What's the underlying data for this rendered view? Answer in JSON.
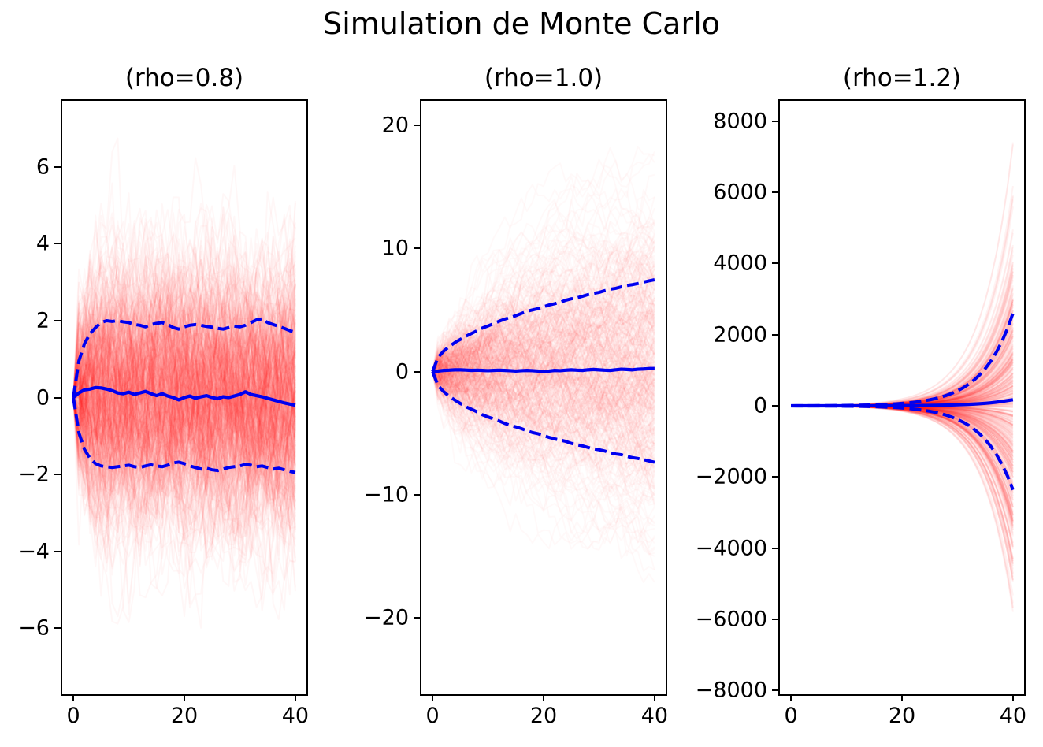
{
  "figure": {
    "background": "#ffffff",
    "text_color": "#000000"
  },
  "chart_data": {
    "type": "line",
    "title": "Simulation de Monte Carlo",
    "grid": false,
    "legend": null,
    "line_color": "#0000f0",
    "path_color": "#ff0000",
    "panels": [
      {
        "title": "(rho=0.8)",
        "rho": 0.8,
        "n_steps": 40,
        "xlim": [
          -2,
          42
        ],
        "ylim": [
          -7.72,
          7.72
        ],
        "xticks": [
          {
            "v": 0,
            "label": "0"
          },
          {
            "v": 20,
            "label": "20"
          },
          {
            "v": 40,
            "label": "40"
          }
        ],
        "yticks": [
          {
            "v": 6,
            "label": "6"
          },
          {
            "v": 4,
            "label": "4"
          },
          {
            "v": 2,
            "label": "2"
          },
          {
            "v": 0,
            "label": "0"
          },
          {
            "v": -2,
            "label": "−2"
          },
          {
            "v": -4,
            "label": "−4"
          },
          {
            "v": -6,
            "label": "−6"
          }
        ],
        "sample_paths": {
          "count": 500,
          "sigma": 1.0,
          "alpha": 0.03,
          "line_width": 2,
          "seed": 42
        },
        "mean": [
          0,
          0.12,
          0.2,
          0.22,
          0.26,
          0.25,
          0.22,
          0.18,
          0.12,
          0.1,
          0.14,
          0.08,
          0.12,
          0.16,
          0.1,
          0.05,
          0.1,
          0.04,
          0,
          -0.06,
          0,
          0.04,
          -0.02,
          0.02,
          0.05,
          0,
          -0.03,
          0.02,
          0,
          0.04,
          0.08,
          0.15,
          0.08,
          0.05,
          0.02,
          -0.02,
          -0.06,
          -0.1,
          -0.14,
          -0.17,
          -0.2
        ],
        "upper": [
          0,
          0.95,
          1.4,
          1.66,
          1.82,
          1.95,
          2.0,
          1.98,
          2.0,
          1.97,
          1.95,
          1.9,
          1.88,
          1.84,
          1.9,
          1.93,
          1.95,
          1.9,
          1.82,
          1.78,
          1.84,
          1.88,
          1.9,
          1.88,
          1.85,
          1.83,
          1.8,
          1.78,
          1.82,
          1.86,
          1.84,
          1.88,
          1.95,
          2.02,
          2.05,
          1.95,
          1.9,
          1.85,
          1.8,
          1.74,
          1.7
        ],
        "lower": [
          0,
          -0.92,
          -1.35,
          -1.58,
          -1.72,
          -1.78,
          -1.8,
          -1.82,
          -1.8,
          -1.78,
          -1.76,
          -1.8,
          -1.82,
          -1.78,
          -1.75,
          -1.78,
          -1.8,
          -1.76,
          -1.7,
          -1.68,
          -1.72,
          -1.78,
          -1.82,
          -1.86,
          -1.84,
          -1.88,
          -1.9,
          -1.86,
          -1.82,
          -1.8,
          -1.78,
          -1.74,
          -1.76,
          -1.8,
          -1.78,
          -1.82,
          -1.86,
          -1.84,
          -1.88,
          -1.92,
          -1.95
        ]
      },
      {
        "title": "(rho=1.0)",
        "rho": 1.0,
        "n_steps": 40,
        "xlim": [
          -2,
          42
        ],
        "ylim": [
          -26.2,
          22.0
        ],
        "xticks": [
          {
            "v": 0,
            "label": "0"
          },
          {
            "v": 20,
            "label": "20"
          },
          {
            "v": 40,
            "label": "40"
          }
        ],
        "yticks": [
          {
            "v": 20,
            "label": "20"
          },
          {
            "v": 10,
            "label": "10"
          },
          {
            "v": 0,
            "label": "0"
          },
          {
            "v": -10,
            "label": "−10"
          },
          {
            "v": -20,
            "label": "−20"
          }
        ],
        "sample_paths": {
          "count": 500,
          "sigma": 1.0,
          "alpha": 0.025,
          "line_width": 2,
          "seed": 1337
        },
        "mean": [
          0,
          0.05,
          0.1,
          0.12,
          0.15,
          0.15,
          0.13,
          0.1,
          0.12,
          0.1,
          0.08,
          0.1,
          0.12,
          0.1,
          0.08,
          0.05,
          0.08,
          0.1,
          0.08,
          0.05,
          0.02,
          0.05,
          0.1,
          0.08,
          0.12,
          0.15,
          0.12,
          0.1,
          0.15,
          0.18,
          0.15,
          0.12,
          0.1,
          0.15,
          0.2,
          0.18,
          0.15,
          0.2,
          0.22,
          0.25,
          0.25
        ],
        "upper": [
          0,
          1.18,
          1.67,
          2.04,
          2.36,
          2.62,
          2.88,
          3.1,
          3.33,
          3.55,
          3.72,
          3.9,
          4.1,
          4.27,
          4.4,
          4.55,
          4.73,
          4.9,
          5.02,
          5.12,
          5.27,
          5.42,
          5.52,
          5.64,
          5.8,
          5.92,
          6.0,
          6.12,
          6.26,
          6.36,
          6.44,
          6.58,
          6.7,
          6.77,
          6.89,
          7.0,
          7.07,
          7.16,
          7.28,
          7.38,
          7.47
        ],
        "lower": [
          0,
          -1.14,
          -1.62,
          -2.0,
          -2.3,
          -2.58,
          -2.85,
          -3.05,
          -3.26,
          -3.5,
          -3.68,
          -3.84,
          -4.0,
          -4.2,
          -4.36,
          -4.48,
          -4.62,
          -4.8,
          -4.94,
          -5.04,
          -5.18,
          -5.34,
          -5.46,
          -5.55,
          -5.66,
          -5.82,
          -5.93,
          -6.02,
          -6.15,
          -6.27,
          -6.34,
          -6.44,
          -6.58,
          -6.68,
          -6.74,
          -6.88,
          -6.98,
          -7.05,
          -7.14,
          -7.25,
          -7.35
        ]
      },
      {
        "title": "(rho=1.2)",
        "rho": 1.2,
        "n_steps": 40,
        "xlim": [
          -2,
          42
        ],
        "ylim": [
          -8110,
          8575
        ],
        "xticks": [
          {
            "v": 0,
            "label": "0"
          },
          {
            "v": 20,
            "label": "20"
          },
          {
            "v": 40,
            "label": "40"
          }
        ],
        "yticks": [
          {
            "v": 8000,
            "label": "8000"
          },
          {
            "v": 6000,
            "label": "6000"
          },
          {
            "v": 4000,
            "label": "4000"
          },
          {
            "v": 2000,
            "label": "2000"
          },
          {
            "v": 0,
            "label": "0"
          },
          {
            "v": -2000,
            "label": "−2000"
          },
          {
            "v": -4000,
            "label": "−4000"
          },
          {
            "v": -6000,
            "label": "−6000"
          },
          {
            "v": -8000,
            "label": "−8000"
          }
        ],
        "sample_paths": {
          "count": 450,
          "sigma": 1.1,
          "alpha": 0.05,
          "line_width": 2,
          "seed": 2024
        },
        "mean": [
          0,
          0.1,
          0.2,
          0.2,
          0.3,
          0.3,
          0.4,
          0.4,
          0.5,
          0.6,
          0.7,
          0.9,
          1.1,
          1.3,
          1.5,
          1.8,
          2.2,
          2.7,
          3.2,
          3.8,
          4.6,
          5.5,
          6.6,
          7.9,
          9.5,
          11.4,
          13.7,
          16.5,
          19.8,
          23.7,
          28.5,
          34.2,
          41,
          49.2,
          59,
          70.9,
          85,
          102,
          122.5,
          147,
          170
        ],
        "upper": [
          0,
          2.1,
          2.5,
          3.1,
          3.7,
          4.4,
          5.3,
          6.4,
          7.6,
          9.2,
          11,
          13.2,
          15.8,
          19,
          22.8,
          27.3,
          32.8,
          39.3,
          47.2,
          56.6,
          67.9,
          81.5,
          97.8,
          117.4,
          140.8,
          169,
          202.8,
          243.4,
          292.1,
          350.5,
          420.6,
          504.7,
          605.6,
          726.8,
          872.1,
          1046.5,
          1255.8,
          1507,
          1808.4,
          2170,
          2604
        ],
        "lower": [
          0,
          -1.9,
          -2.3,
          -2.8,
          -3.3,
          -4,
          -4.8,
          -5.8,
          -6.9,
          -8.3,
          -10,
          -12,
          -14.3,
          -17.2,
          -20.6,
          -24.8,
          -29.7,
          -35.7,
          -42.8,
          -51.4,
          -61.6,
          -74,
          -88.7,
          -106.5,
          -127.8,
          -153.3,
          -184,
          -220.8,
          -265,
          -318,
          -381.5,
          -457.9,
          -549.4,
          -659.3,
          -791.2,
          -949.4,
          -1139.3,
          -1367.2,
          -1640.6,
          -1968.7,
          -2362.5
        ]
      }
    ]
  }
}
